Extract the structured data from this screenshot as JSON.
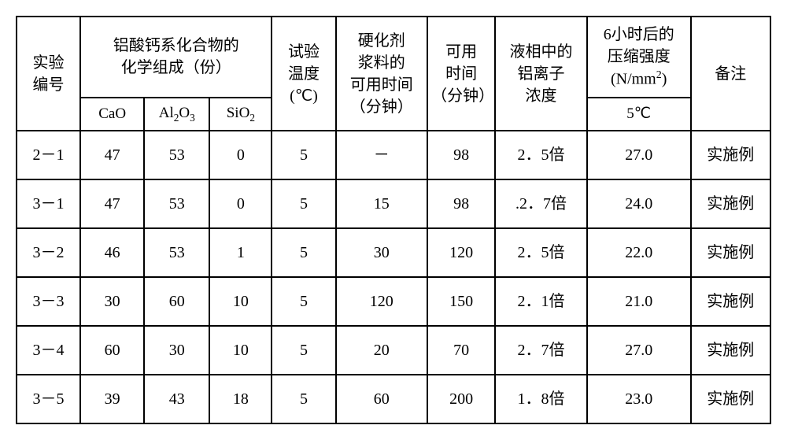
{
  "table": {
    "type": "table",
    "background_color": "#ffffff",
    "border_color": "#000000",
    "border_width": 2,
    "font_family": "SimSun",
    "header_fontsize": 20,
    "cell_fontsize": 20,
    "headers": {
      "experiment_no": "实验\n编号",
      "composition_group": "铝酸钙系化合物的\n化学组成（份）",
      "cao": "CaO",
      "al2o3": "Al₂O₃",
      "sio2": "SiO₂",
      "test_temp": "试验\n温度\n(℃)",
      "hardener_time": "硬化剂\n浆料的\n可用时间\n（分钟）",
      "usable_time": "可用\n时间\n（分钟）",
      "al_ion_conc": "液相中的\n铝离子\n浓度",
      "compressive_strength": "6小时后的\n压缩强度\n(N/mm²)",
      "temp_5c": "5℃",
      "remarks": "备注"
    },
    "column_widths": [
      "80px",
      "80px",
      "80px",
      "80px",
      "80px",
      "110px",
      "80px",
      "110px",
      "120px",
      "100px"
    ],
    "rows": [
      {
        "no": "2－1",
        "cao": "47",
        "al2o3": "53",
        "sio2": "0",
        "temp": "5",
        "hardener": "－",
        "usable": "98",
        "al_ion": "2．5倍",
        "strength": "27.0",
        "remark": "实施例"
      },
      {
        "no": "3－1",
        "cao": "47",
        "al2o3": "53",
        "sio2": "0",
        "temp": "5",
        "hardener": "15",
        "usable": "98",
        "al_ion": ".2．7倍",
        "strength": "24.0",
        "remark": "实施例"
      },
      {
        "no": "3－2",
        "cao": "46",
        "al2o3": "53",
        "sio2": "1",
        "temp": "5",
        "hardener": "30",
        "usable": "120",
        "al_ion": "2．5倍",
        "strength": "22.0",
        "remark": "实施例"
      },
      {
        "no": "3－3",
        "cao": "30",
        "al2o3": "60",
        "sio2": "10",
        "temp": "5",
        "hardener": "120",
        "usable": "150",
        "al_ion": "2．1倍",
        "strength": "21.0",
        "remark": "实施例"
      },
      {
        "no": "3－4",
        "cao": "60",
        "al2o3": "30",
        "sio2": "10",
        "temp": "5",
        "hardener": "20",
        "usable": "70",
        "al_ion": "2．7倍",
        "strength": "27.0",
        "remark": "实施例"
      },
      {
        "no": "3－5",
        "cao": "39",
        "al2o3": "43",
        "sio2": "18",
        "temp": "5",
        "hardener": "60",
        "usable": "200",
        "al_ion": "1．8倍",
        "strength": "23.0",
        "remark": "实施例"
      }
    ]
  }
}
